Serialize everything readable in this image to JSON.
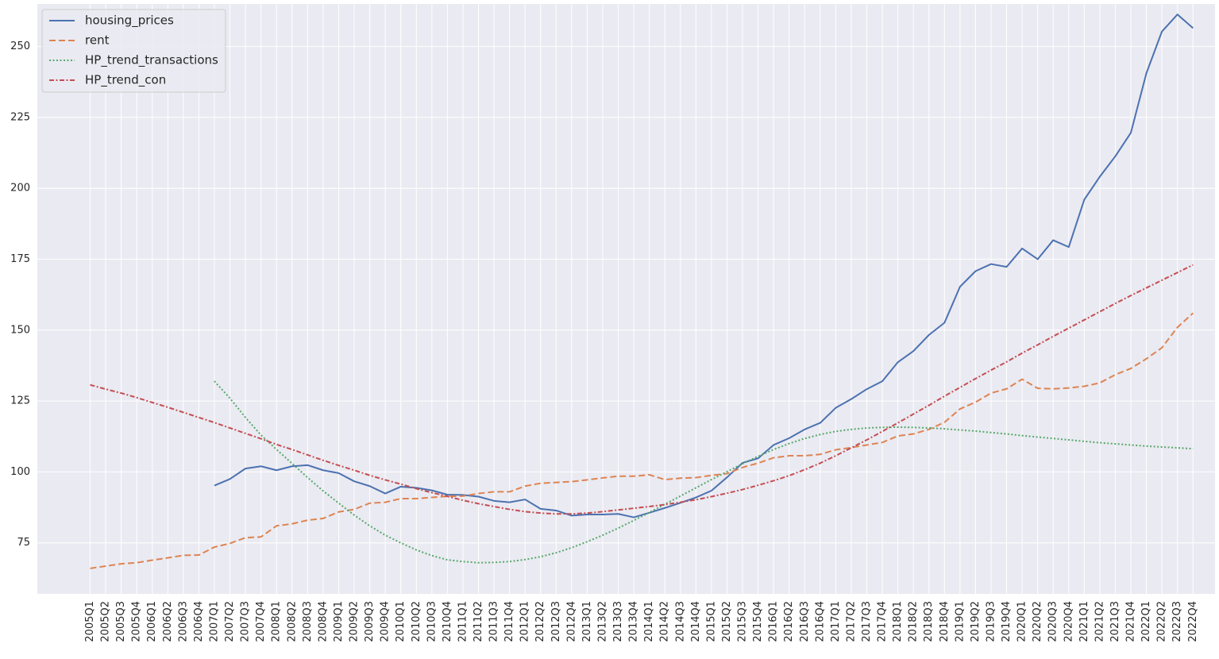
{
  "chart_data": {
    "type": "line",
    "title": "",
    "xlabel": "",
    "ylabel": "",
    "ylim": [
      57,
      265
    ],
    "yticks": [
      75,
      100,
      125,
      150,
      175,
      200,
      225,
      250
    ],
    "grid": true,
    "legend_position": "top-left",
    "colors": {
      "background": "#eaeaf2",
      "grid": "#ffffff",
      "housing_prices": "#4c72b0",
      "rent": "#dd8452",
      "HP_trend_transactions": "#55a868",
      "HP_trend_con": "#c44e52"
    },
    "categories": [
      "2005Q1",
      "2005Q2",
      "2005Q3",
      "2005Q4",
      "2006Q1",
      "2006Q2",
      "2006Q3",
      "2006Q4",
      "2007Q1",
      "2007Q2",
      "2007Q3",
      "2007Q4",
      "2008Q1",
      "2008Q2",
      "2008Q3",
      "2008Q4",
      "2009Q1",
      "2009Q2",
      "2009Q3",
      "2009Q4",
      "2010Q1",
      "2010Q2",
      "2010Q3",
      "2010Q4",
      "2011Q1",
      "2011Q2",
      "2011Q3",
      "2011Q4",
      "2012Q1",
      "2012Q2",
      "2012Q3",
      "2012Q4",
      "2013Q1",
      "2013Q2",
      "2013Q3",
      "2013Q4",
      "2014Q1",
      "2014Q2",
      "2014Q3",
      "2014Q4",
      "2015Q1",
      "2015Q2",
      "2015Q3",
      "2015Q4",
      "2016Q1",
      "2016Q2",
      "2016Q3",
      "2016Q4",
      "2017Q1",
      "2017Q2",
      "2017Q3",
      "2017Q4",
      "2018Q1",
      "2018Q2",
      "2018Q3",
      "2018Q4",
      "2019Q1",
      "2019Q2",
      "2019Q3",
      "2019Q4",
      "2020Q1",
      "2020Q2",
      "2020Q3",
      "2020Q4",
      "2021Q1",
      "2021Q2",
      "2021Q3",
      "2021Q4",
      "2022Q1",
      "2022Q2",
      "2022Q3",
      "2022Q4"
    ],
    "series": [
      {
        "name": "housing_prices",
        "style": "solid",
        "values": [
          null,
          null,
          null,
          null,
          null,
          null,
          null,
          null,
          95.2,
          97.5,
          101.2,
          102.0,
          100.6,
          102.0,
          102.4,
          100.6,
          99.6,
          96.7,
          95.0,
          92.4,
          94.8,
          94.4,
          93.5,
          92.0,
          91.9,
          91.3,
          89.8,
          89.3,
          90.3,
          87.0,
          86.4,
          84.6,
          85.0,
          85.0,
          85.2,
          84.0,
          85.6,
          87.3,
          89.1,
          91.0,
          93.4,
          98.1,
          103.2,
          104.8,
          109.5,
          111.9,
          115.0,
          117.3,
          122.6,
          125.7,
          129.2,
          132.0,
          138.7,
          142.6,
          148.3,
          152.6,
          165.3,
          170.8,
          173.3,
          172.3,
          178.8,
          175.0,
          181.7,
          179.3,
          196.0,
          204.1,
          211.3,
          219.6,
          240.6,
          255.3,
          261.3,
          256.5
        ]
      },
      {
        "name": "rent",
        "style": "dashed",
        "values": [
          66.0,
          66.8,
          67.6,
          68.0,
          68.9,
          69.7,
          70.6,
          70.7,
          73.5,
          74.8,
          76.8,
          77.1,
          81.0,
          81.7,
          83.0,
          83.6,
          85.9,
          86.8,
          89.0,
          89.3,
          90.6,
          90.6,
          91.0,
          91.4,
          91.5,
          92.4,
          93.0,
          93.0,
          95.0,
          96.0,
          96.3,
          96.6,
          97.2,
          97.9,
          98.5,
          98.5,
          99.0,
          97.3,
          97.8,
          98.0,
          98.8,
          99.4,
          101.6,
          103.1,
          105.0,
          105.7,
          105.7,
          106.2,
          107.8,
          108.6,
          109.5,
          110.4,
          112.7,
          113.4,
          115.0,
          117.5,
          122.2,
          124.6,
          127.8,
          129.3,
          132.7,
          129.5,
          129.3,
          129.6,
          130.2,
          131.4,
          134.3,
          136.5,
          139.9,
          143.8,
          151.0,
          156.0
        ]
      },
      {
        "name": "HP_trend_transactions",
        "style": "dotted",
        "values": [
          null,
          null,
          null,
          null,
          null,
          null,
          null,
          null,
          132.0,
          126.0,
          119.2,
          113.0,
          107.9,
          103.0,
          98.0,
          93.3,
          89.0,
          84.8,
          81.0,
          77.7,
          75.0,
          72.5,
          70.5,
          69.0,
          68.4,
          68.0,
          68.1,
          68.4,
          69.1,
          70.1,
          71.5,
          73.3,
          75.4,
          77.7,
          80.2,
          82.9,
          85.7,
          88.6,
          91.5,
          94.4,
          97.3,
          100.1,
          102.9,
          105.5,
          107.9,
          110.0,
          111.8,
          113.2,
          114.3,
          115.0,
          115.5,
          115.7,
          115.8,
          115.7,
          115.5,
          115.2,
          114.8,
          114.4,
          113.9,
          113.4,
          112.8,
          112.3,
          111.8,
          111.3,
          110.8,
          110.3,
          109.9,
          109.5,
          109.1,
          108.8,
          108.5,
          108.2
        ]
      },
      {
        "name": "HP_trend_con",
        "style": "dashdot",
        "values": [
          130.7,
          129.2,
          127.8,
          126.2,
          124.5,
          122.8,
          121.0,
          119.2,
          117.4,
          115.5,
          113.6,
          111.7,
          109.7,
          107.9,
          106.0,
          104.1,
          102.3,
          100.6,
          98.8,
          97.2,
          95.7,
          94.1,
          92.7,
          91.4,
          90.0,
          88.8,
          87.8,
          86.8,
          86.0,
          85.5,
          85.2,
          85.2,
          85.5,
          86.0,
          86.6,
          87.2,
          87.8,
          88.5,
          89.3,
          90.2,
          91.3,
          92.5,
          93.8,
          95.3,
          96.9,
          98.7,
          100.8,
          103.1,
          105.7,
          108.5,
          111.3,
          114.3,
          117.3,
          120.4,
          123.5,
          126.7,
          129.8,
          132.9,
          135.9,
          138.8,
          141.9,
          144.8,
          147.8,
          150.7,
          153.6,
          156.5,
          159.4,
          162.2,
          164.9,
          167.6,
          170.3,
          173.0
        ]
      }
    ]
  }
}
